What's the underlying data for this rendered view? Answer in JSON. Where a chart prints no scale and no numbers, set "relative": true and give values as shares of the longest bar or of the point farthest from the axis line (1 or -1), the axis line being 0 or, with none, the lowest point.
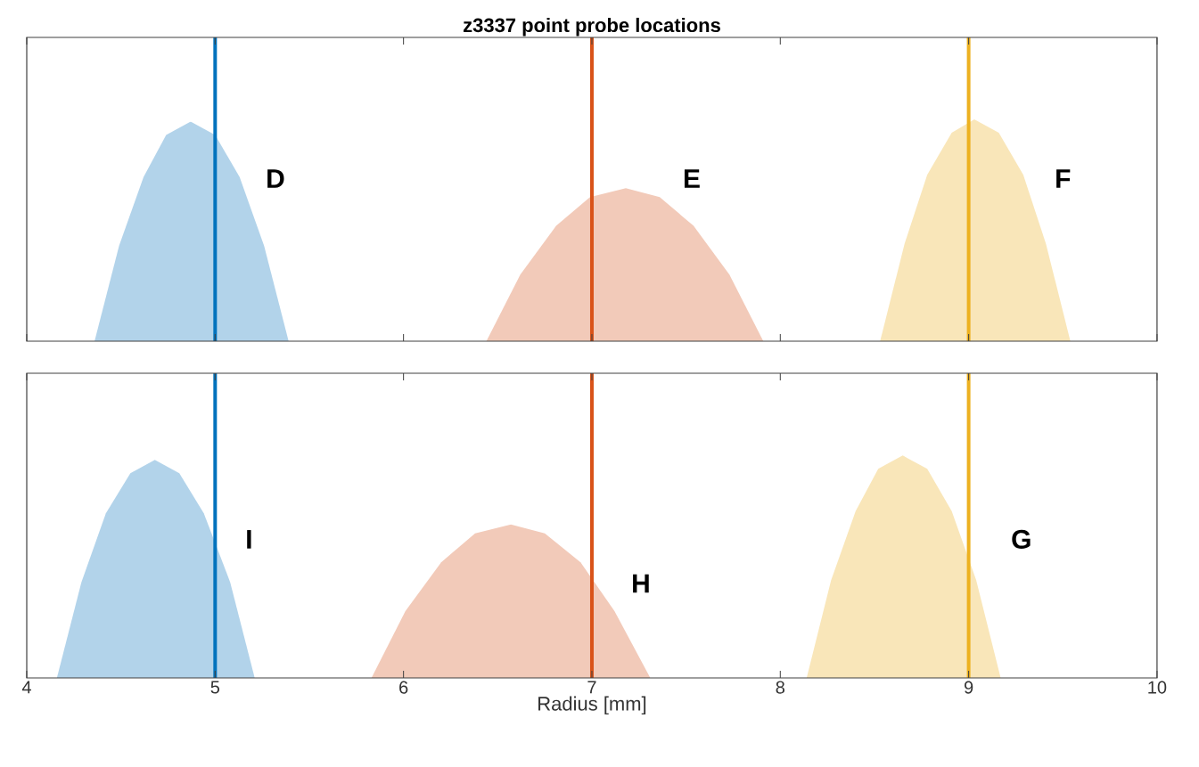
{
  "chart_data": [
    {
      "type": "area",
      "title": "z3337 point probe locations",
      "relative": true,
      "xlim": [
        4,
        10
      ],
      "xticks": [
        4,
        5,
        6,
        7,
        8,
        9,
        10
      ],
      "tick_labels": false,
      "series": [
        {
          "color": "#b2d3ea",
          "x": [
            4.36,
            4.49,
            4.62,
            4.74,
            4.87,
            5.0,
            5.13,
            5.26,
            5.39
          ],
          "values": [
            0,
            0.43,
            0.74,
            0.93,
            0.99,
            0.93,
            0.74,
            0.43,
            0
          ]
        },
        {
          "color": "#f2cab9",
          "x": [
            6.44,
            6.62,
            6.81,
            6.99,
            7.18,
            7.36,
            7.54,
            7.73,
            7.91
          ],
          "values": [
            0,
            0.3,
            0.52,
            0.65,
            0.69,
            0.65,
            0.52,
            0.3,
            0
          ]
        },
        {
          "color": "#f9e6b9",
          "x": [
            8.53,
            8.66,
            8.78,
            8.91,
            9.03,
            9.16,
            9.29,
            9.41,
            9.54
          ],
          "values": [
            0,
            0.44,
            0.75,
            0.94,
            1,
            0.94,
            0.75,
            0.44,
            0
          ]
        }
      ],
      "ref_lines": [
        {
          "axis": "x",
          "value": 5,
          "color": "#0072bd"
        },
        {
          "axis": "x",
          "value": 7,
          "color": "#d95319"
        },
        {
          "axis": "x",
          "value": 9,
          "color": "#edb120"
        }
      ],
      "annotations": [
        "D",
        "E",
        "F"
      ]
    },
    {
      "type": "area",
      "xlabel": "Radius [mm]",
      "relative": true,
      "xlim": [
        4,
        10
      ],
      "xticks": [
        4,
        5,
        6,
        7,
        8,
        9,
        10
      ],
      "tick_labels": "x",
      "series": [
        {
          "color": "#b2d3ea",
          "x": [
            4.16,
            4.29,
            4.42,
            4.55,
            4.68,
            4.81,
            4.94,
            5.08,
            5.21
          ],
          "values": [
            0,
            0.43,
            0.74,
            0.92,
            0.98,
            0.92,
            0.74,
            0.43,
            0
          ]
        },
        {
          "color": "#f2cab9",
          "x": [
            5.83,
            6.01,
            6.2,
            6.38,
            6.57,
            6.75,
            6.94,
            7.12,
            7.31
          ],
          "values": [
            0,
            0.3,
            0.52,
            0.65,
            0.69,
            0.65,
            0.52,
            0.3,
            0
          ]
        },
        {
          "color": "#f9e6b9",
          "x": [
            8.14,
            8.27,
            8.4,
            8.52,
            8.65,
            8.78,
            8.91,
            9.04,
            9.17
          ],
          "values": [
            0,
            0.44,
            0.75,
            0.94,
            1,
            0.94,
            0.75,
            0.44,
            0
          ]
        }
      ],
      "ref_lines": [
        {
          "axis": "x",
          "value": 5,
          "color": "#0072bd"
        },
        {
          "axis": "x",
          "value": 7,
          "color": "#d95319"
        },
        {
          "axis": "x",
          "value": 9,
          "color": "#edb120"
        }
      ],
      "annotations": [
        "I",
        "H",
        "G"
      ]
    }
  ]
}
